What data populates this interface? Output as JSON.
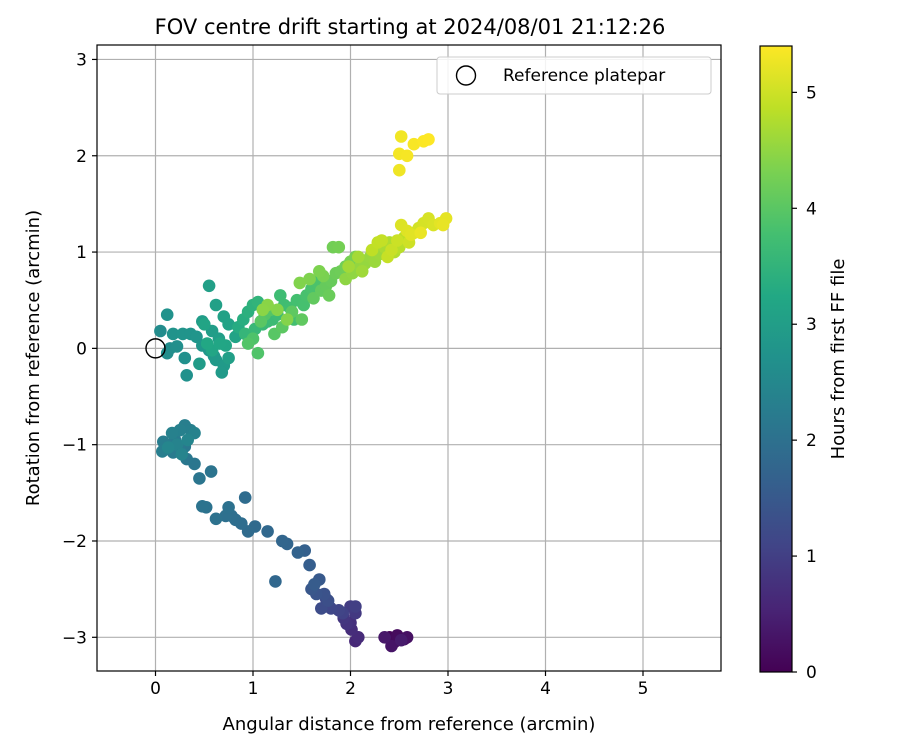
{
  "chart_data": {
    "type": "scatter",
    "title": "FOV centre drift starting at 2024/08/01 21:12:26",
    "xlabel": "Angular distance from reference (arcmin)",
    "ylabel": "Rotation from reference (arcmin)",
    "xlim": [
      -0.6,
      5.8
    ],
    "ylim": [
      -3.35,
      3.15
    ],
    "xticks": [
      "0",
      "1",
      "2",
      "3",
      "4",
      "5"
    ],
    "xtick_values": [
      0,
      1,
      2,
      3,
      4,
      5
    ],
    "yticks": [
      "−3",
      "−2",
      "−1",
      "0",
      "1",
      "2",
      "3"
    ],
    "ytick_values": [
      -3,
      -2,
      -1,
      0,
      1,
      2,
      3
    ],
    "grid": true,
    "colormap": "viridis",
    "legend": {
      "placement": "top-right",
      "label": "Reference platepar",
      "marker": "open-circle",
      "point": [
        0,
        0
      ]
    },
    "colorbar": {
      "label": "Hours from first FF file",
      "range": [
        0,
        5.4
      ],
      "ticks": [
        "0",
        "1",
        "2",
        "3",
        "4",
        "5"
      ],
      "tick_values": [
        0,
        1,
        2,
        3,
        4,
        5
      ]
    },
    "series": [
      {
        "points": [
          [
            2.4,
            -3.0,
            0.05
          ],
          [
            2.45,
            -3.05,
            0.1
          ],
          [
            2.48,
            -2.98,
            0.15
          ],
          [
            2.55,
            -3.02,
            0.2
          ],
          [
            2.58,
            -3.0,
            0.25
          ],
          [
            2.42,
            -3.09,
            0.3
          ],
          [
            2.35,
            -3.0,
            0.35
          ],
          [
            2.52,
            -3.03,
            0.4
          ],
          [
            2.05,
            -3.04,
            0.6
          ],
          [
            2.08,
            -3.0,
            0.65
          ],
          [
            2.01,
            -2.92,
            0.7
          ],
          [
            2.0,
            -2.85,
            0.75
          ],
          [
            1.96,
            -2.86,
            0.8
          ],
          [
            1.93,
            -2.8,
            0.85
          ],
          [
            2.05,
            -2.75,
            0.9
          ],
          [
            2.0,
            -2.68,
            0.95
          ],
          [
            2.05,
            -2.68,
            1.0
          ],
          [
            1.92,
            -2.75,
            1.05
          ],
          [
            1.88,
            -2.72,
            1.1
          ],
          [
            1.8,
            -2.7,
            1.15
          ],
          [
            1.75,
            -2.6,
            1.2
          ],
          [
            1.7,
            -2.7,
            1.25
          ],
          [
            1.77,
            -2.62,
            1.3
          ],
          [
            1.73,
            -2.55,
            1.35
          ],
          [
            1.65,
            -2.55,
            1.4
          ],
          [
            1.6,
            -2.5,
            1.45
          ],
          [
            1.68,
            -2.4,
            1.5
          ],
          [
            1.63,
            -2.45,
            1.55
          ],
          [
            1.58,
            -2.25,
            1.6
          ],
          [
            1.53,
            -2.1,
            1.65
          ],
          [
            1.46,
            -2.12,
            1.7
          ],
          [
            1.35,
            -2.03,
            1.75
          ],
          [
            1.3,
            -2.0,
            1.78
          ],
          [
            1.23,
            -2.42,
            1.8
          ],
          [
            1.15,
            -1.9,
            1.82
          ],
          [
            1.02,
            -1.85,
            1.85
          ],
          [
            0.95,
            -1.9,
            1.88
          ],
          [
            0.92,
            -1.55,
            1.9
          ],
          [
            0.88,
            -1.82,
            1.92
          ],
          [
            0.82,
            -1.78,
            1.94
          ],
          [
            0.78,
            -1.74,
            1.96
          ],
          [
            0.72,
            -1.74,
            1.98
          ],
          [
            0.75,
            -1.65,
            2.0
          ],
          [
            0.62,
            -1.77,
            2.02
          ],
          [
            0.52,
            -1.65,
            2.04
          ],
          [
            0.48,
            -1.64,
            2.06
          ],
          [
            0.57,
            -1.28,
            2.08
          ],
          [
            0.45,
            -1.35,
            2.1
          ],
          [
            0.4,
            -1.2,
            2.12
          ],
          [
            0.32,
            -1.15,
            2.14
          ],
          [
            0.3,
            -1.02,
            2.16
          ],
          [
            0.25,
            -1.05,
            2.18
          ],
          [
            0.2,
            -0.95,
            2.2
          ],
          [
            0.18,
            -1.08,
            2.22
          ],
          [
            0.12,
            -1.0,
            2.24
          ],
          [
            0.08,
            -0.97,
            2.26
          ],
          [
            0.07,
            -1.07,
            2.28
          ],
          [
            0.3,
            -0.8,
            2.3
          ],
          [
            0.36,
            -0.85,
            2.32
          ],
          [
            0.25,
            -0.85,
            2.34
          ],
          [
            0.17,
            -0.88,
            2.36
          ],
          [
            0.4,
            -0.88,
            2.38
          ],
          [
            0.22,
            -1.0,
            2.4
          ],
          [
            0.27,
            -1.1,
            2.42
          ],
          [
            0.33,
            -0.95,
            2.44
          ],
          [
            0.13,
            -1.03,
            2.46
          ],
          [
            0.05,
            0.18,
            2.6
          ],
          [
            0.15,
            0.0,
            2.62
          ],
          [
            0.12,
            -0.05,
            2.64
          ],
          [
            0.22,
            0.02,
            2.66
          ],
          [
            0.3,
            -0.1,
            2.68
          ],
          [
            0.32,
            -0.28,
            2.7
          ],
          [
            0.12,
            0.35,
            2.72
          ],
          [
            0.18,
            0.15,
            2.74
          ],
          [
            0.28,
            0.15,
            2.76
          ],
          [
            0.36,
            0.15,
            2.78
          ],
          [
            0.42,
            0.12,
            2.8
          ],
          [
            0.48,
            0.03,
            2.82
          ],
          [
            0.55,
            -0.02,
            2.84
          ],
          [
            0.6,
            -0.08,
            2.86
          ],
          [
            0.62,
            -0.12,
            2.88
          ],
          [
            0.7,
            -0.18,
            2.9
          ],
          [
            0.68,
            -0.25,
            2.92
          ],
          [
            0.45,
            -0.16,
            2.94
          ],
          [
            0.48,
            0.28,
            2.96
          ],
          [
            0.58,
            0.18,
            2.98
          ],
          [
            0.65,
            0.1,
            3.0
          ],
          [
            0.75,
            -0.1,
            3.02
          ],
          [
            0.55,
            0.65,
            3.04
          ],
          [
            0.62,
            0.45,
            3.06
          ],
          [
            0.7,
            0.33,
            3.08
          ],
          [
            0.75,
            0.25,
            3.1
          ],
          [
            0.82,
            0.12,
            3.12
          ],
          [
            0.5,
            0.25,
            3.14
          ],
          [
            0.58,
            -0.02,
            3.16
          ],
          [
            0.72,
            0.03,
            3.18
          ],
          [
            0.66,
            0.05,
            3.2
          ],
          [
            0.53,
            0.05,
            3.22
          ],
          [
            0.85,
            0.22,
            3.3
          ],
          [
            0.9,
            0.3,
            3.35
          ],
          [
            0.95,
            0.38,
            3.4
          ],
          [
            1.0,
            0.45,
            3.45
          ],
          [
            1.05,
            0.48,
            3.5
          ],
          [
            0.92,
            0.15,
            3.55
          ],
          [
            1.02,
            0.2,
            3.6
          ],
          [
            1.1,
            0.25,
            3.62
          ],
          [
            1.15,
            0.28,
            3.64
          ],
          [
            1.2,
            0.3,
            3.66
          ],
          [
            1.25,
            0.35,
            3.68
          ],
          [
            1.28,
            0.55,
            3.7
          ],
          [
            1.32,
            0.45,
            3.72
          ],
          [
            1.38,
            0.42,
            3.74
          ],
          [
            1.42,
            0.3,
            3.76
          ],
          [
            1.45,
            0.5,
            3.78
          ],
          [
            1.52,
            0.45,
            3.8
          ],
          [
            1.55,
            0.55,
            3.82
          ],
          [
            1.6,
            0.62,
            3.84
          ],
          [
            1.65,
            0.7,
            3.86
          ],
          [
            1.0,
            0.1,
            3.88
          ],
          [
            1.05,
            -0.05,
            3.9
          ],
          [
            0.95,
            0.05,
            3.92
          ],
          [
            1.12,
            0.35,
            3.94
          ],
          [
            1.18,
            0.4,
            3.96
          ],
          [
            1.22,
            0.15,
            3.98
          ],
          [
            1.08,
            0.28,
            4.0
          ],
          [
            1.3,
            0.22,
            4.02
          ],
          [
            1.4,
            0.38,
            4.04
          ],
          [
            1.5,
            0.3,
            4.06
          ],
          [
            1.62,
            0.52,
            4.08
          ],
          [
            1.7,
            0.6,
            4.1
          ],
          [
            1.75,
            0.65,
            4.12
          ],
          [
            1.8,
            0.7,
            4.14
          ],
          [
            1.78,
            0.55,
            4.16
          ],
          [
            1.85,
            0.78,
            4.18
          ],
          [
            1.9,
            0.8,
            4.2
          ],
          [
            1.95,
            0.85,
            4.22
          ],
          [
            1.82,
            1.05,
            4.24
          ],
          [
            1.88,
            1.05,
            4.26
          ],
          [
            2.0,
            0.9,
            4.28
          ],
          [
            2.05,
            0.95,
            4.3
          ],
          [
            1.72,
            0.75,
            4.32
          ],
          [
            1.68,
            0.8,
            4.34
          ],
          [
            1.58,
            0.72,
            4.36
          ],
          [
            1.48,
            0.68,
            4.38
          ],
          [
            1.35,
            0.3,
            4.4
          ],
          [
            1.25,
            0.4,
            4.42
          ],
          [
            1.15,
            0.45,
            4.44
          ],
          [
            1.1,
            0.4,
            4.46
          ],
          [
            1.95,
            0.72,
            4.48
          ],
          [
            2.02,
            0.78,
            4.5
          ],
          [
            2.1,
            0.85,
            4.52
          ],
          [
            2.15,
            0.88,
            4.54
          ],
          [
            2.2,
            0.95,
            4.56
          ],
          [
            2.25,
            0.9,
            4.58
          ],
          [
            2.3,
            0.98,
            4.6
          ],
          [
            2.12,
            0.8,
            4.62
          ],
          [
            1.98,
            0.85,
            4.64
          ],
          [
            2.08,
            0.95,
            4.66
          ],
          [
            2.35,
            1.05,
            4.7
          ],
          [
            2.4,
            1.1,
            4.74
          ],
          [
            2.45,
            1.0,
            4.78
          ],
          [
            2.5,
            1.05,
            4.82
          ],
          [
            2.55,
            1.15,
            4.86
          ],
          [
            2.22,
            1.02,
            4.88
          ],
          [
            2.28,
            1.1,
            4.9
          ],
          [
            2.32,
            1.12,
            4.92
          ],
          [
            2.38,
            0.95,
            4.94
          ],
          [
            2.42,
            1.02,
            4.96
          ],
          [
            2.48,
            1.12,
            4.98
          ],
          [
            2.6,
            1.1,
            5.0
          ],
          [
            2.65,
            1.2,
            5.02
          ],
          [
            2.7,
            1.25,
            5.04
          ],
          [
            2.75,
            1.3,
            5.06
          ],
          [
            2.8,
            1.35,
            5.08
          ],
          [
            2.85,
            1.28,
            5.1
          ],
          [
            2.52,
            1.28,
            5.12
          ],
          [
            2.58,
            1.22,
            5.14
          ],
          [
            2.62,
            1.18,
            5.16
          ],
          [
            2.92,
            1.3,
            5.18
          ],
          [
            2.98,
            1.35,
            5.2
          ],
          [
            2.95,
            1.28,
            5.22
          ],
          [
            2.72,
            1.2,
            5.24
          ],
          [
            2.5,
            1.85,
            5.28
          ],
          [
            2.52,
            2.2,
            5.3
          ],
          [
            2.5,
            2.02,
            5.32
          ],
          [
            2.58,
            2.0,
            5.34
          ],
          [
            2.65,
            2.12,
            5.36
          ],
          [
            2.75,
            2.15,
            5.38
          ],
          [
            2.8,
            2.17,
            5.4
          ]
        ]
      }
    ]
  }
}
